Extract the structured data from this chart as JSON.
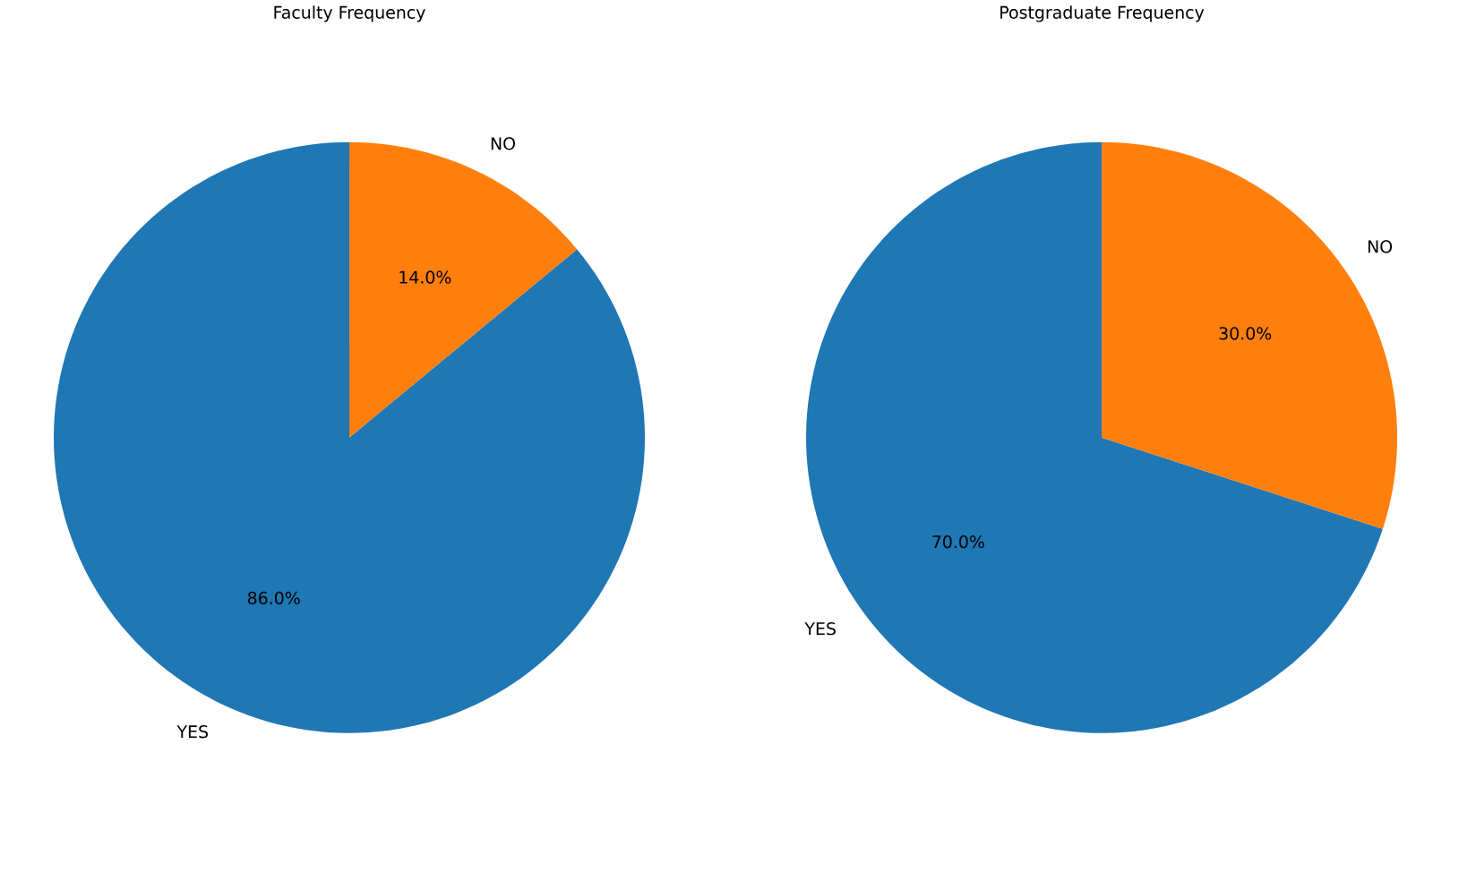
{
  "chart_data": [
    {
      "type": "pie",
      "title": "Faculty Frequency",
      "categories": [
        "YES",
        "NO"
      ],
      "values": [
        86,
        14
      ],
      "colors": [
        "#1f77b4",
        "#ff7f0e"
      ],
      "value_labels": [
        "86.0%",
        "14.0%"
      ]
    },
    {
      "type": "pie",
      "title": "Postgraduate Frequency",
      "categories": [
        "YES",
        "NO"
      ],
      "values": [
        70,
        30
      ],
      "colors": [
        "#1f77b4",
        "#ff7f0e"
      ],
      "value_labels": [
        "70.0%",
        "30.0%"
      ]
    }
  ]
}
